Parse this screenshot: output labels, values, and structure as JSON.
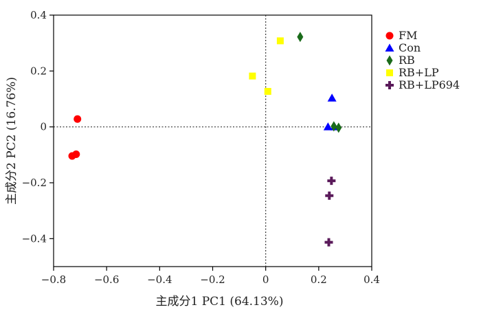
{
  "chart_data": {
    "type": "scatter",
    "title": "",
    "xlabel": "主成分1 PC1 (64.13%)",
    "ylabel": "主成分2 PC2 (16.76%)",
    "xlim": [
      -0.8,
      0.4
    ],
    "ylim": [
      -0.5,
      0.4
    ],
    "x_ticks": [
      -0.8,
      -0.6,
      -0.4,
      -0.2,
      0,
      0.2,
      0.4
    ],
    "y_ticks": [
      -0.4,
      -0.2,
      0,
      0.2,
      0.4
    ],
    "x_tick_labels": [
      "−0.8",
      "−0.6",
      "−0.4",
      "−0.2",
      "0",
      "0.2",
      "0.4"
    ],
    "y_tick_labels": [
      "−0.4",
      "−0.2",
      "0",
      "0.2",
      "0.4"
    ],
    "reference_lines": {
      "x": 0,
      "y": 0,
      "style": "dotted"
    },
    "grid": false,
    "legend_position": "right",
    "series": [
      {
        "name": "FM",
        "marker": "circle",
        "color": "#ff0000",
        "points": [
          {
            "x": -0.71,
            "y": 0.028
          },
          {
            "x": -0.73,
            "y": -0.104
          },
          {
            "x": -0.715,
            "y": -0.098
          }
        ]
      },
      {
        "name": "Con",
        "marker": "triangle",
        "color": "#0000ff",
        "points": [
          {
            "x": 0.25,
            "y": 0.103
          },
          {
            "x": 0.235,
            "y": 0.0
          },
          {
            "x": 0.26,
            "y": 0.0
          }
        ]
      },
      {
        "name": "RB",
        "marker": "diamond",
        "color": "#1a6b1a",
        "points": [
          {
            "x": 0.13,
            "y": 0.322
          },
          {
            "x": 0.257,
            "y": 0.002
          },
          {
            "x": 0.275,
            "y": -0.003
          }
        ]
      },
      {
        "name": "RB+LP",
        "marker": "square",
        "color": "#ffff00",
        "points": [
          {
            "x": 0.055,
            "y": 0.308
          },
          {
            "x": -0.05,
            "y": 0.182
          },
          {
            "x": 0.008,
            "y": 0.127
          }
        ]
      },
      {
        "name": "RB+LP694",
        "marker": "plus",
        "color": "#5a1a5a",
        "points": [
          {
            "x": 0.248,
            "y": -0.193
          },
          {
            "x": 0.24,
            "y": -0.246
          },
          {
            "x": 0.238,
            "y": -0.413
          }
        ]
      }
    ]
  }
}
